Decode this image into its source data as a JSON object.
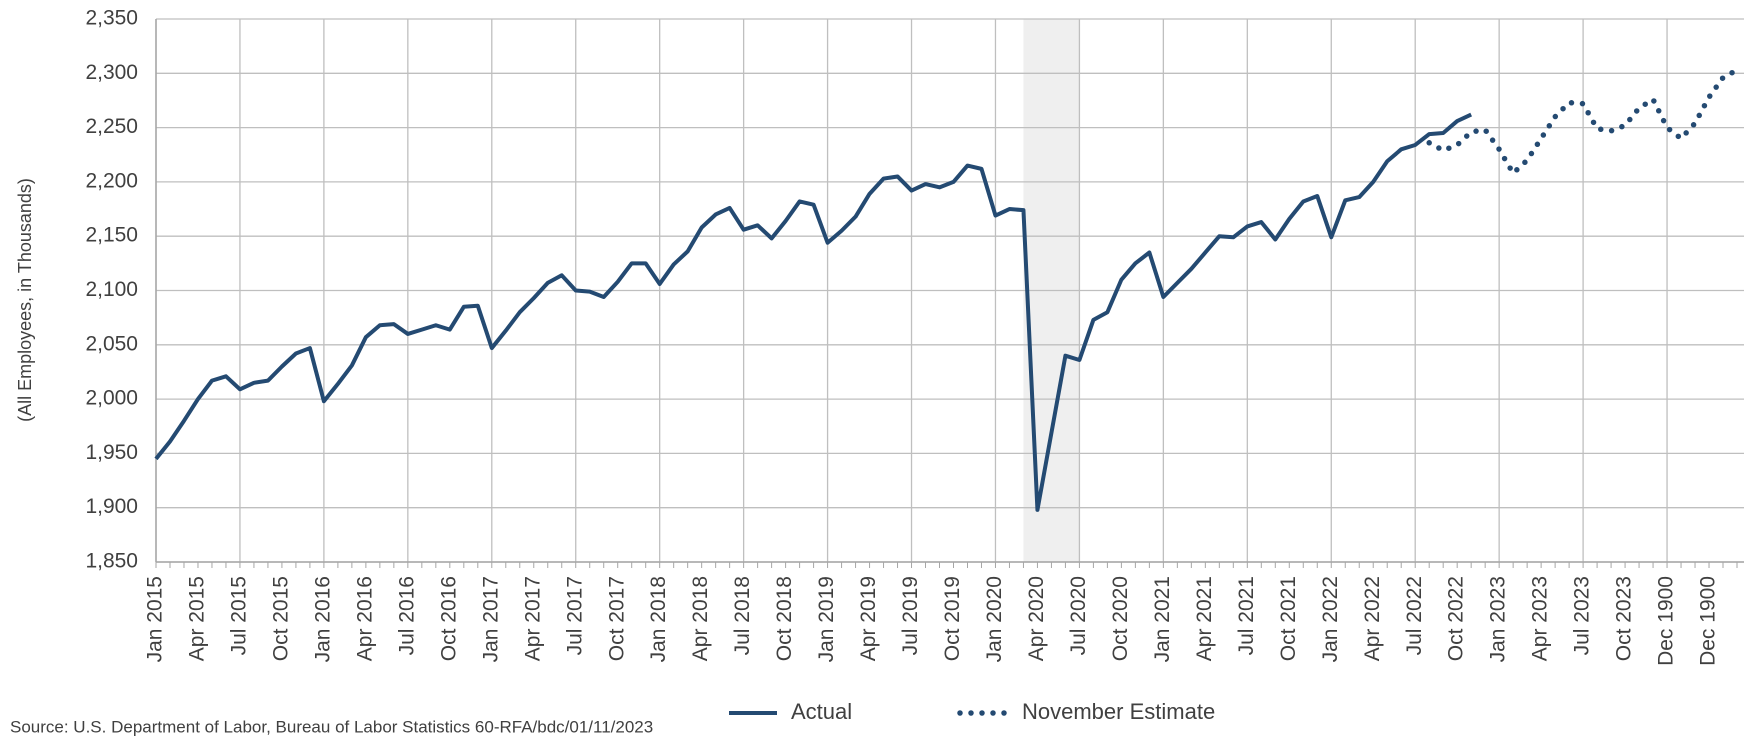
{
  "chart_data": {
    "type": "line",
    "y_label": "(All Employees, in Thousands)",
    "source": "Source: U.S. Department of Labor, Bureau of Labor Statistics 60-RFA/bdc/01/11/2023",
    "categories": [
      "Jan 2015",
      null,
      null,
      "Apr 2015",
      null,
      null,
      "Jul 2015",
      null,
      null,
      "Oct 2015",
      null,
      null,
      "Jan 2016",
      null,
      null,
      "Apr 2016",
      null,
      null,
      "Jul 2016",
      null,
      null,
      "Oct 2016",
      null,
      null,
      "Jan 2017",
      null,
      null,
      "Apr 2017",
      null,
      null,
      "Jul 2017",
      null,
      null,
      "Oct 2017",
      null,
      null,
      "Jan 2018",
      null,
      null,
      "Apr 2018",
      null,
      null,
      "Jul 2018",
      null,
      null,
      "Oct 2018",
      null,
      null,
      "Jan 2019",
      null,
      null,
      "Apr 2019",
      null,
      null,
      "Jul 2019",
      null,
      null,
      "Oct 2019",
      null,
      null,
      "Jan 2020",
      null,
      null,
      "Apr 2020",
      null,
      null,
      "Jul 2020",
      null,
      null,
      "Oct 2020",
      null,
      null,
      "Jan 2021",
      null,
      null,
      "Apr 2021",
      null,
      null,
      "Jul 2021",
      null,
      null,
      "Oct 2021",
      null,
      null,
      "Jan 2022",
      null,
      null,
      "Apr 2022",
      null,
      null,
      "Jul 2022",
      null,
      null,
      "Oct 2022",
      null,
      null,
      "Jan 2023",
      null,
      null,
      "Apr 2023",
      null,
      null,
      "Jul 2023",
      null,
      null,
      "Oct 2023",
      null,
      null,
      "Dec 1900",
      null,
      null,
      "Dec 1900",
      null,
      null
    ],
    "series": [
      {
        "name": "Actual",
        "color": "#244a72",
        "style": "solid",
        "values": [
          1945,
          1961,
          1980,
          2000,
          2017,
          2021,
          2009,
          2015,
          2017,
          2030,
          2042,
          2047,
          1998,
          2014,
          2031,
          2057,
          2068,
          2069,
          2060,
          2064,
          2068,
          2064,
          2085,
          2086,
          2047,
          2063,
          2080,
          2093,
          2107,
          2114,
          2100,
          2099,
          2094,
          2108,
          2125,
          2125,
          2106,
          2124,
          2136,
          2158,
          2170,
          2176,
          2156,
          2160,
          2148,
          2164,
          2182,
          2179,
          2144,
          2155,
          2168,
          2189,
          2203,
          2205,
          2192,
          2198,
          2195,
          2200,
          2215,
          2212,
          2169,
          2175,
          2174,
          1898,
          1969,
          2040,
          2036,
          2073,
          2080,
          2110,
          2125,
          2135,
          2094,
          2107,
          2120,
          2135,
          2150,
          2149,
          2159,
          2163,
          2147,
          2166,
          2182,
          2187,
          2149,
          2183,
          2186,
          2200,
          2219,
          2230,
          2234,
          2244,
          2245,
          2256,
          2262,
          null,
          null,
          null,
          null,
          null,
          null,
          null,
          null,
          null,
          null,
          null,
          null,
          null,
          null,
          null,
          null,
          null,
          null,
          null
        ]
      },
      {
        "name": "November Estimate",
        "color": "#244a72",
        "style": "dotted",
        "values": [
          null,
          null,
          null,
          null,
          null,
          null,
          null,
          null,
          null,
          null,
          null,
          null,
          null,
          null,
          null,
          null,
          null,
          null,
          null,
          null,
          null,
          null,
          null,
          null,
          null,
          null,
          null,
          null,
          null,
          null,
          null,
          null,
          null,
          null,
          null,
          null,
          null,
          null,
          null,
          null,
          null,
          null,
          null,
          null,
          null,
          null,
          null,
          null,
          null,
          null,
          null,
          null,
          null,
          null,
          null,
          null,
          null,
          null,
          null,
          null,
          null,
          null,
          null,
          null,
          null,
          null,
          null,
          null,
          null,
          null,
          null,
          null,
          null,
          null,
          null,
          null,
          null,
          null,
          null,
          null,
          null,
          null,
          null,
          null,
          null,
          null,
          null,
          null,
          null,
          null,
          null,
          2236,
          2229,
          2234,
          2246,
          2248,
          2230,
          2208,
          2220,
          2240,
          2260,
          2273,
          2272,
          2249,
          2247,
          2252,
          2268,
          2276,
          2250,
          2240,
          2254,
          2278,
          2296,
          2303
        ]
      }
    ],
    "ylim": [
      1850,
      2350
    ],
    "yticks": [
      {
        "value": 1850,
        "label": "1,850"
      },
      {
        "value": 1900,
        "label": "1,900"
      },
      {
        "value": 1950,
        "label": "1,950"
      },
      {
        "value": 2000,
        "label": "2,000"
      },
      {
        "value": 2050,
        "label": "2,050"
      },
      {
        "value": 2100,
        "label": "2,100"
      },
      {
        "value": 2150,
        "label": "2,150"
      },
      {
        "value": 2200,
        "label": "2,200"
      },
      {
        "value": 2250,
        "label": "2,250"
      },
      {
        "value": 2300,
        "label": "2,300"
      },
      {
        "value": 2350,
        "label": "2,350"
      }
    ],
    "grid": true,
    "legend": "bottom"
  }
}
